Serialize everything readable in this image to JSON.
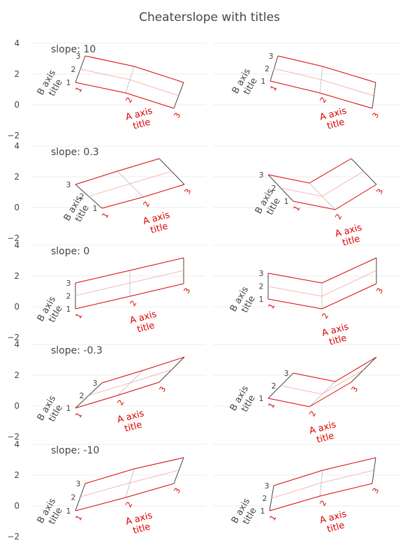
{
  "chart_data": {
    "type": "carpet",
    "title": "Cheaterslope with titles",
    "y_ticks": [
      "4",
      "2",
      "0",
      "−2"
    ],
    "ylim": [
      -2,
      4
    ],
    "grid": true,
    "colors": {
      "a_axis": "#dd0000",
      "a_grid": "#f2a3a3",
      "b_axis": "#444444",
      "b_grid": "#bbbbbb"
    },
    "a_values": [
      1,
      2,
      3
    ],
    "b_values": [
      1,
      2,
      3
    ],
    "a_axis_title": [
      "A axis",
      "title"
    ],
    "b_axis_title": [
      "B axis",
      "title"
    ],
    "panels": [
      {
        "row": 0,
        "col": 0,
        "label": "slope: 10",
        "a_tick_labels": [
          "1",
          "2",
          "3"
        ],
        "b_tick_labels": [
          "1",
          "2",
          "3"
        ],
        "a_lines": [
          [
            [
              122,
              80
            ],
            [
              108,
              118
            ]
          ],
          [
            [
              192,
              95
            ],
            [
              180,
              133
            ]
          ],
          [
            [
              263,
              118
            ],
            [
              249,
              155
            ]
          ]
        ],
        "b_lines": [
          [
            [
              122,
              80
            ],
            [
              192,
              95
            ],
            [
              263,
              118
            ]
          ],
          [
            [
              115,
              99
            ],
            [
              186,
              114
            ],
            [
              256,
              137
            ]
          ],
          [
            [
              108,
              118
            ],
            [
              180,
              133
            ],
            [
              249,
              155
            ]
          ]
        ]
      },
      {
        "row": 0,
        "col": 1,
        "label": "",
        "a_tick_labels": [
          "1",
          "2",
          "3"
        ],
        "b_tick_labels": [
          "1",
          "2",
          "3"
        ],
        "a_lines": [
          [
            [
              398,
              80
            ],
            [
              387,
              116
            ]
          ],
          [
            [
              462,
              95
            ],
            [
              458,
              133
            ]
          ],
          [
            [
              538,
              118
            ],
            [
              533,
              155
            ]
          ]
        ],
        "b_lines": [
          [
            [
              398,
              80
            ],
            [
              462,
              95
            ],
            [
              538,
              118
            ]
          ],
          [
            [
              392,
              98
            ],
            [
              460,
              114
            ],
            [
              535,
              137
            ]
          ],
          [
            [
              387,
              116
            ],
            [
              458,
              133
            ],
            [
              533,
              155
            ]
          ]
        ]
      },
      {
        "row": 1,
        "col": 0,
        "label": "slope: 0.3",
        "a_tick_labels": [
          "1",
          "2",
          "3"
        ],
        "b_tick_labels": [
          "1",
          "2",
          "3"
        ],
        "a_lines": [
          [
            [
              108,
              264
            ],
            [
              146,
              298
            ]
          ],
          [
            [
              168,
              245
            ],
            [
              205,
              282
            ]
          ],
          [
            [
              228,
              227
            ],
            [
              264,
              264
            ]
          ]
        ],
        "b_lines": [
          [
            [
              108,
              264
            ],
            [
              168,
              245
            ],
            [
              228,
              227
            ]
          ],
          [
            [
              127,
              281
            ],
            [
              186,
              263
            ],
            [
              246,
              245
            ]
          ],
          [
            [
              146,
              298
            ],
            [
              205,
              282
            ],
            [
              264,
              264
            ]
          ]
        ]
      },
      {
        "row": 1,
        "col": 1,
        "label": "",
        "a_tick_labels": [
          "1",
          "2",
          "3"
        ],
        "b_tick_labels": [
          "1",
          "2",
          "3"
        ],
        "a_lines": [
          [
            [
              384,
              250
            ],
            [
              420,
              288
            ]
          ],
          [
            [
              443,
              262
            ],
            [
              480,
              300
            ]
          ],
          [
            [
              503,
              227
            ],
            [
              539,
              264
            ]
          ]
        ],
        "b_lines": [
          [
            [
              384,
              250
            ],
            [
              443,
              262
            ],
            [
              503,
              227
            ]
          ],
          [
            [
              402,
              269
            ],
            [
              461,
              281
            ],
            [
              521,
              245
            ]
          ],
          [
            [
              420,
              288
            ],
            [
              480,
              300
            ],
            [
              539,
              264
            ]
          ]
        ]
      },
      {
        "row": 2,
        "col": 0,
        "label": "slope: 0",
        "a_tick_labels": [
          "1",
          "2",
          "3"
        ],
        "b_tick_labels": [
          "1",
          "2",
          "3"
        ],
        "a_lines": [
          [
            [
              108,
              405
            ],
            [
              108,
              442
            ]
          ],
          [
            [
              186,
              387
            ],
            [
              186,
              424
            ]
          ],
          [
            [
              263,
              369
            ],
            [
              263,
              406
            ]
          ]
        ],
        "b_lines": [
          [
            [
              108,
              405
            ],
            [
              186,
              387
            ],
            [
              263,
              369
            ]
          ],
          [
            [
              108,
              423
            ],
            [
              186,
              405
            ],
            [
              263,
              387
            ]
          ],
          [
            [
              108,
              442
            ],
            [
              186,
              424
            ],
            [
              263,
              406
            ]
          ]
        ]
      },
      {
        "row": 2,
        "col": 1,
        "label": "",
        "a_tick_labels": [
          "1",
          "2",
          "3"
        ],
        "b_tick_labels": [
          "1",
          "2",
          "3"
        ],
        "a_lines": [
          [
            [
              384,
              391
            ],
            [
              384,
              428
            ]
          ],
          [
            [
              461,
              405
            ],
            [
              461,
              442
            ]
          ],
          [
            [
              539,
              369
            ],
            [
              539,
              406
            ]
          ]
        ],
        "b_lines": [
          [
            [
              384,
              391
            ],
            [
              461,
              405
            ],
            [
              539,
              369
            ]
          ],
          [
            [
              384,
              410
            ],
            [
              461,
              424
            ],
            [
              539,
              387
            ]
          ],
          [
            [
              384,
              428
            ],
            [
              461,
              442
            ],
            [
              539,
              406
            ]
          ]
        ]
      },
      {
        "row": 3,
        "col": 0,
        "label": "slope: -0.3",
        "a_tick_labels": [
          "1",
          "2",
          "3"
        ],
        "b_tick_labels": [
          "1",
          "2",
          "3"
        ],
        "a_lines": [
          [
            [
              146,
              548
            ],
            [
              108,
              584
            ]
          ],
          [
            [
              205,
              530
            ],
            [
              168,
              566
            ]
          ],
          [
            [
              264,
              511
            ],
            [
              228,
              547
            ]
          ]
        ],
        "b_lines": [
          [
            [
              146,
              548
            ],
            [
              205,
              530
            ],
            [
              264,
              511
            ]
          ],
          [
            [
              127,
              566
            ],
            [
              186,
              548
            ],
            [
              246,
              529
            ]
          ],
          [
            [
              108,
              584
            ],
            [
              168,
              566
            ],
            [
              228,
              547
            ]
          ]
        ]
      },
      {
        "row": 3,
        "col": 1,
        "label": "",
        "a_tick_labels": [
          "1",
          "2",
          "3"
        ],
        "b_tick_labels": [
          "1",
          "2",
          "3"
        ],
        "a_lines": [
          [
            [
              420,
              534
            ],
            [
              384,
              570
            ]
          ],
          [
            [
              480,
              546
            ],
            [
              443,
              582
            ]
          ],
          [
            [
              539,
              511
            ],
            [
              503,
              547
            ]
          ]
        ],
        "b_lines": [
          [
            [
              420,
              534
            ],
            [
              480,
              546
            ],
            [
              539,
              511
            ]
          ],
          [
            [
              402,
              552
            ],
            [
              461,
              564
            ],
            [
              521,
              529
            ]
          ],
          [
            [
              384,
              570
            ],
            [
              443,
              582
            ],
            [
              503,
              547
            ]
          ]
        ]
      },
      {
        "row": 4,
        "col": 0,
        "label": "slope: -10",
        "a_tick_labels": [
          "1",
          "2",
          "3"
        ],
        "b_tick_labels": [
          "1",
          "2",
          "3"
        ],
        "a_lines": [
          [
            [
              122,
              692
            ],
            [
              108,
              731
            ]
          ],
          [
            [
              192,
              671
            ],
            [
              180,
              712
            ]
          ],
          [
            [
              263,
              655
            ],
            [
              249,
              692
            ]
          ]
        ],
        "b_lines": [
          [
            [
              122,
              692
            ],
            [
              192,
              671
            ],
            [
              263,
              655
            ]
          ],
          [
            [
              115,
              711
            ],
            [
              186,
              691
            ],
            [
              256,
              673
            ]
          ],
          [
            [
              108,
              731
            ],
            [
              180,
              712
            ],
            [
              249,
              692
            ]
          ]
        ]
      },
      {
        "row": 4,
        "col": 1,
        "label": "",
        "a_tick_labels": [
          "1",
          "2",
          "3"
        ],
        "b_tick_labels": [
          "1",
          "2",
          "3"
        ],
        "a_lines": [
          [
            [
              392,
              695
            ],
            [
              386,
              731
            ]
          ],
          [
            [
              462,
              673
            ],
            [
              458,
              710
            ]
          ],
          [
            [
              538,
              655
            ],
            [
              533,
              692
            ]
          ]
        ],
        "b_lines": [
          [
            [
              392,
              695
            ],
            [
              462,
              673
            ],
            [
              538,
              655
            ]
          ],
          [
            [
              389,
              713
            ],
            [
              460,
              691
            ],
            [
              535,
              673
            ]
          ],
          [
            [
              386,
              731
            ],
            [
              458,
              710
            ],
            [
              533,
              692
            ]
          ]
        ]
      }
    ]
  }
}
